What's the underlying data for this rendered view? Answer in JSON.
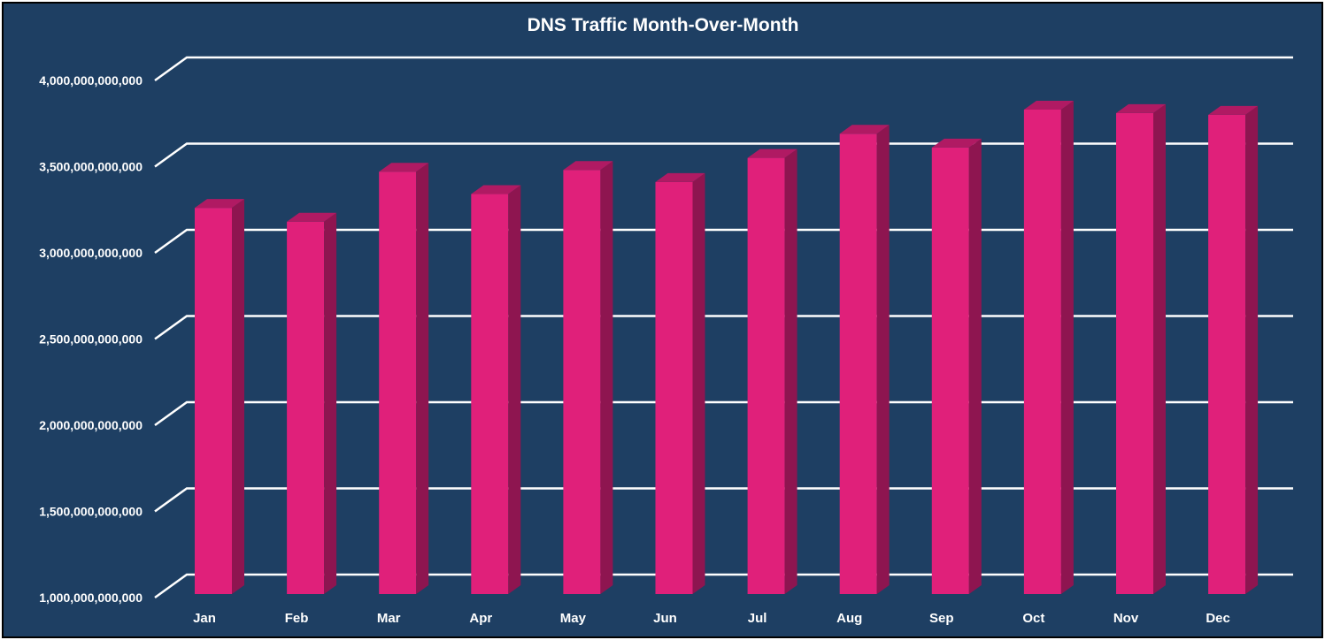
{
  "chart_data": {
    "type": "bar",
    "title": "DNS Traffic Month-Over-Month",
    "xlabel": "",
    "ylabel": "",
    "categories": [
      "Jan",
      "Feb",
      "Mar",
      "Apr",
      "May",
      "Jun",
      "Jul",
      "Aug",
      "Sep",
      "Oct",
      "Nov",
      "Dec"
    ],
    "values": [
      3230000000000,
      3150000000000,
      3440000000000,
      3310000000000,
      3450000000000,
      3380000000000,
      3520000000000,
      3660000000000,
      3580000000000,
      3800000000000,
      3780000000000,
      3770000000000
    ],
    "ylim": [
      1000000000000,
      4000000000000
    ],
    "yticks": [
      1000000000000,
      1500000000000,
      2000000000000,
      2500000000000,
      3000000000000,
      3500000000000,
      4000000000000
    ],
    "ytick_labels": [
      "1,000,000,000,000",
      "1,500,000,000,000",
      "2,000,000,000,000",
      "2,500,000,000,000",
      "3,000,000,000,000",
      "3,500,000,000,000",
      "4,000,000,000,000"
    ],
    "grid": true,
    "legend": "none",
    "style": "3d-column",
    "colors": {
      "background": "#1e3f63",
      "bar_front": "#e0207a",
      "bar_side": "#8e1550",
      "bar_top": "#b01a63",
      "gridline": "#ffffff",
      "text": "#ffffff"
    }
  }
}
